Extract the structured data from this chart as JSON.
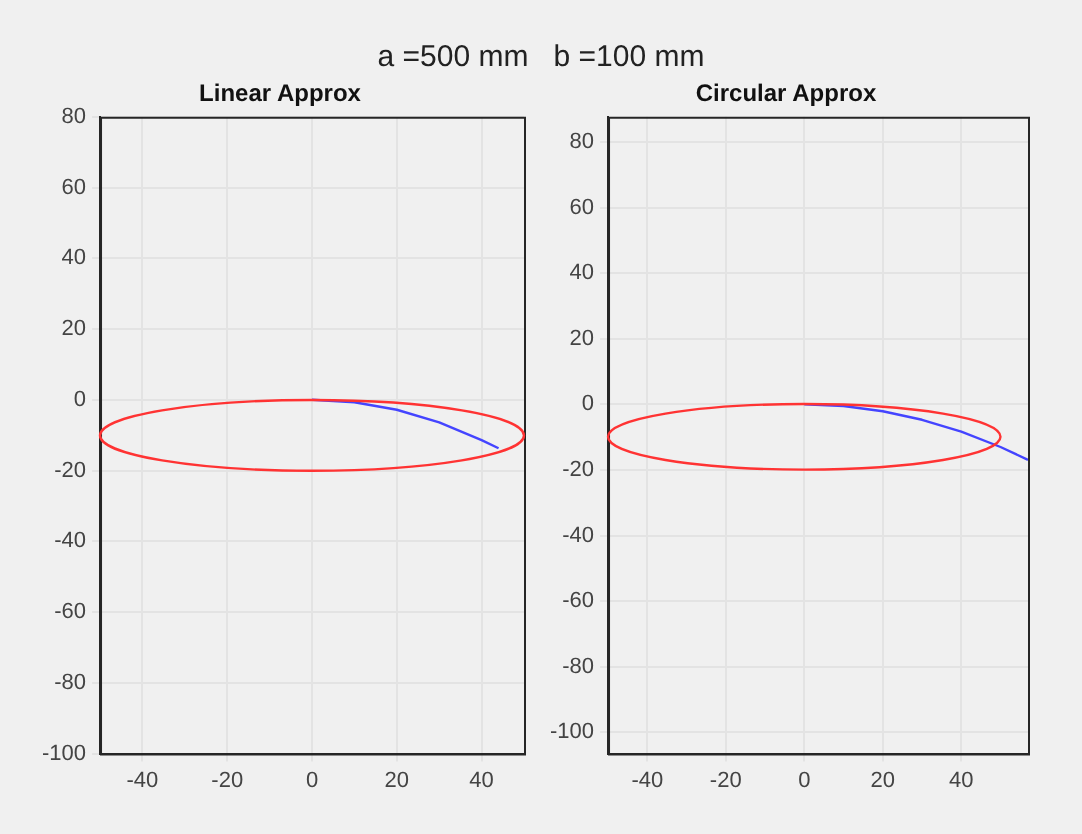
{
  "chart_data": [
    {
      "type": "line",
      "title": "Linear Approx",
      "annotations": [
        "a =500 mm   b =100 mm"
      ],
      "xlim": [
        -50,
        50
      ],
      "ylim": [
        -100,
        80
      ],
      "xticks": [
        -40,
        -20,
        0,
        20,
        40
      ],
      "yticks": [
        -100,
        -80,
        -60,
        -40,
        -20,
        0,
        20,
        40,
        60,
        80
      ],
      "grid": true,
      "marker": "none",
      "line_style": "solid",
      "series": [
        {
          "color": "#4444ff",
          "x": [
            0,
            10,
            20,
            30,
            40,
            44
          ],
          "values": [
            0,
            -0.7,
            -2.8,
            -6.4,
            -11.4,
            -13.7
          ]
        }
      ]
    },
    {
      "type": "line",
      "title": "Circular Approx",
      "xlim": [
        -50,
        57
      ],
      "ylim": [
        -106.5,
        87.7
      ],
      "xticks": [
        -40,
        -20,
        0,
        20,
        40
      ],
      "yticks": [
        -100,
        -80,
        -60,
        -40,
        -20,
        0,
        20,
        40,
        60,
        80
      ],
      "grid": true,
      "marker": "none",
      "line_style": "solid",
      "series": [
        {
          "color": "#4444ff",
          "x": [
            0,
            10,
            20,
            30,
            40,
            50,
            57
          ],
          "values": [
            0,
            -0.5,
            -2.1,
            -4.7,
            -8.3,
            -13,
            -16.9
          ]
        }
      ]
    }
  ]
}
